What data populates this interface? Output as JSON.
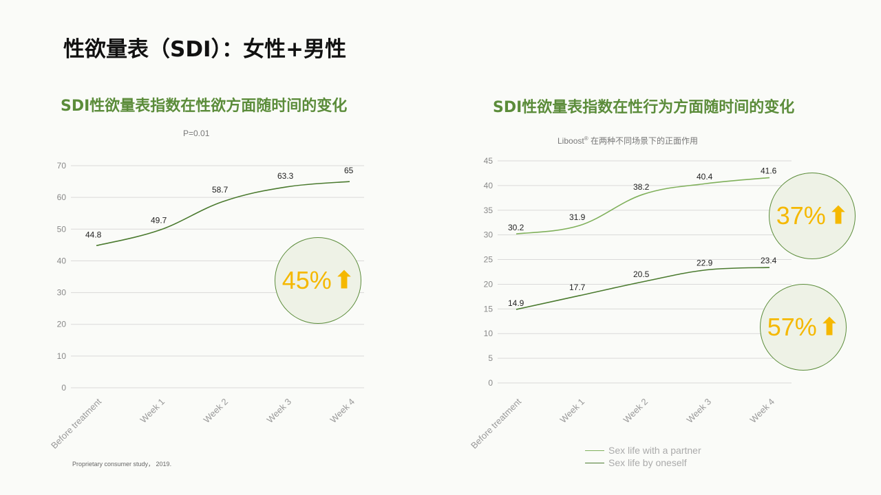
{
  "slide": {
    "title": "性欲量表（SDI）：女性+男性",
    "footnote": "Proprietary consumer study， 2019."
  },
  "colors": {
    "title_green": "#5b8c3a",
    "line_light": "#7fb05a",
    "line_dark": "#4a7a2e",
    "callout_text": "#f5b800",
    "grid": "#d9d9d9"
  },
  "left_chart": {
    "title": "SDI性欲量表指数在性欲方面随时间的变化",
    "subtitle": "P=0.01",
    "callout": {
      "value": "45%",
      "icon": "up-arrow-icon",
      "arrow": "⬆"
    }
  },
  "right_chart": {
    "title": "SDI性欲量表指数在性行为方面随时间的变化",
    "subtitle_brand": "Liboost",
    "subtitle_mark": "®",
    "subtitle_rest": " 在两种不同场景下的正面作用",
    "callout_top": {
      "value": "37%",
      "icon": "up-arrow-icon",
      "arrow": "⬆"
    },
    "callout_bottom": {
      "value": "57%",
      "icon": "up-arrow-icon",
      "arrow": "⬆"
    },
    "legend": [
      {
        "label": "Sex life with a partner",
        "color": "#7fb05a"
      },
      {
        "label": "Sex life by oneself",
        "color": "#4a7a2e"
      }
    ]
  },
  "chart_data": [
    {
      "type": "line",
      "title": "SDI性欲量表指数在性欲方面随时间的变化",
      "categories": [
        "Before treatment",
        "Week 1",
        "Week 2",
        "Week 3",
        "Week 4"
      ],
      "series": [
        {
          "values": [
            44.8,
            49.7,
            58.7,
            63.3,
            65
          ],
          "color": "#4a7a2e"
        }
      ],
      "ylim": [
        0,
        70
      ],
      "yticks": [
        0,
        10,
        20,
        30,
        40,
        50,
        60,
        70
      ],
      "grid": true
    },
    {
      "type": "line",
      "title": "SDI性欲量表指数在性行为方面随时间的变化",
      "categories": [
        "Before treatment",
        "Week 1",
        "Week 2",
        "Week 3",
        "Week 4"
      ],
      "series": [
        {
          "name": "Sex life with a partner",
          "values": [
            30.2,
            31.9,
            38.2,
            40.4,
            41.6
          ],
          "color": "#7fb05a"
        },
        {
          "name": "Sex life by oneself",
          "values": [
            14.9,
            17.7,
            20.5,
            22.9,
            23.4
          ],
          "color": "#4a7a2e"
        }
      ],
      "ylim": [
        0,
        45
      ],
      "yticks": [
        0,
        5,
        10,
        15,
        20,
        25,
        30,
        35,
        40,
        45
      ],
      "grid": true,
      "legend": "bottom"
    }
  ]
}
